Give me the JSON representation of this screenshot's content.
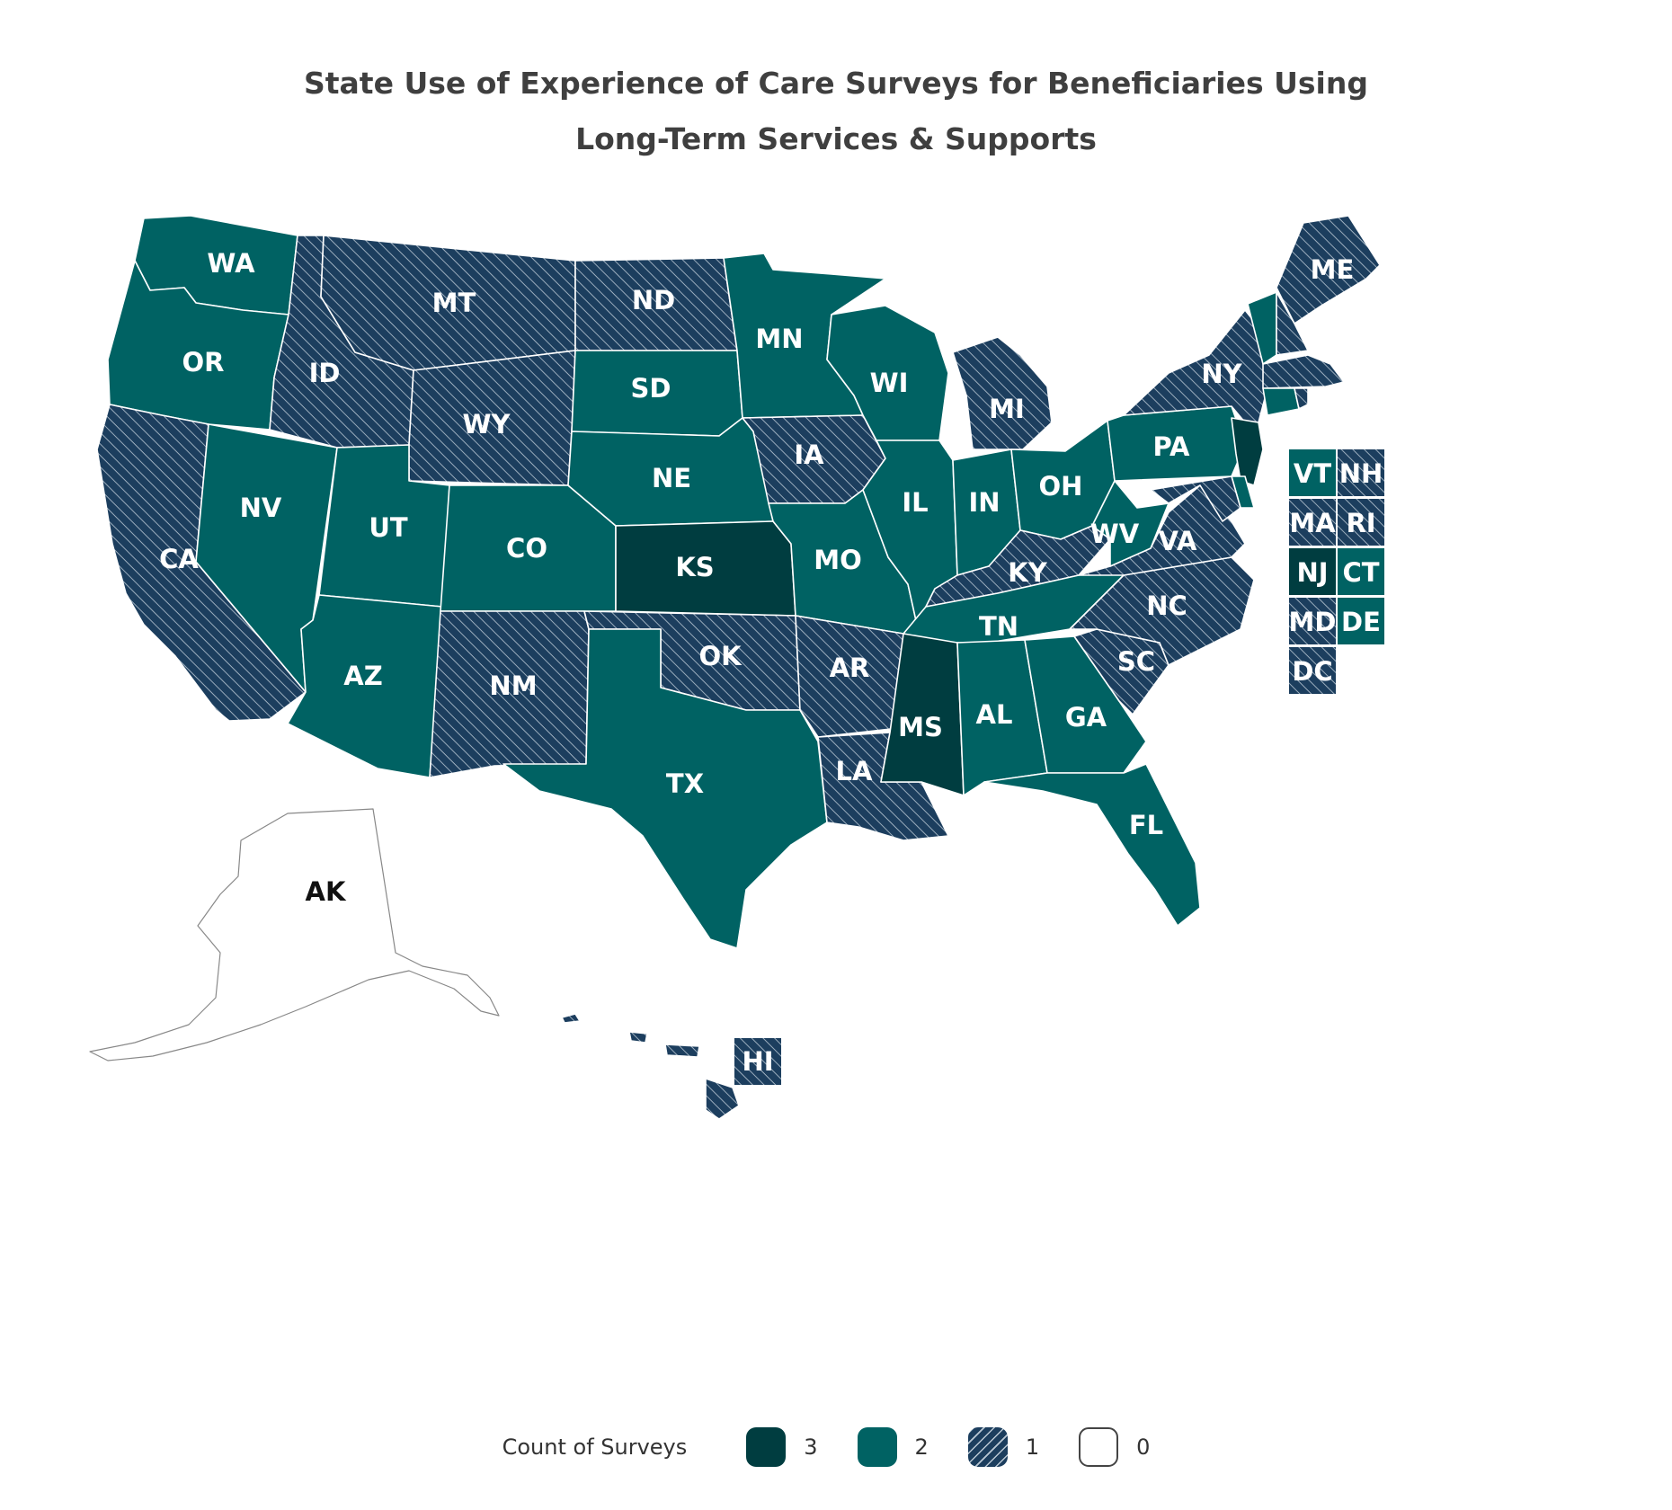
{
  "title": {
    "line1": "State Use of Experience of Care Surveys for Beneficiaries Using",
    "line2": "Long-Term Services & Supports"
  },
  "legend": {
    "title": "Count of Surveys",
    "items": [
      {
        "label": "3",
        "color": "#003d40",
        "pattern": false
      },
      {
        "label": "2",
        "color": "#006263",
        "pattern": false
      },
      {
        "label": "1",
        "color": "#1c3e5e",
        "pattern": true
      },
      {
        "label": "0",
        "color": "#ffffff",
        "pattern": false
      }
    ]
  },
  "colors": {
    "count_3": "#003d40",
    "count_2": "#006263",
    "count_1": "#1c3e5e",
    "count_0": "#ffffff"
  },
  "chart_data": {
    "type": "choropleth",
    "value_name": "Count of Surveys",
    "states": [
      {
        "abbr": "WA",
        "count": 2
      },
      {
        "abbr": "OR",
        "count": 2
      },
      {
        "abbr": "CA",
        "count": 1
      },
      {
        "abbr": "NV",
        "count": 2
      },
      {
        "abbr": "ID",
        "count": 1
      },
      {
        "abbr": "MT",
        "count": 1
      },
      {
        "abbr": "WY",
        "count": 1
      },
      {
        "abbr": "UT",
        "count": 2
      },
      {
        "abbr": "AZ",
        "count": 2
      },
      {
        "abbr": "CO",
        "count": 2
      },
      {
        "abbr": "NM",
        "count": 1
      },
      {
        "abbr": "ND",
        "count": 1
      },
      {
        "abbr": "SD",
        "count": 2
      },
      {
        "abbr": "NE",
        "count": 2
      },
      {
        "abbr": "KS",
        "count": 3
      },
      {
        "abbr": "OK",
        "count": 1
      },
      {
        "abbr": "TX",
        "count": 2
      },
      {
        "abbr": "MN",
        "count": 2
      },
      {
        "abbr": "IA",
        "count": 1
      },
      {
        "abbr": "MO",
        "count": 2
      },
      {
        "abbr": "AR",
        "count": 1
      },
      {
        "abbr": "LA",
        "count": 1
      },
      {
        "abbr": "WI",
        "count": 2
      },
      {
        "abbr": "IL",
        "count": 2
      },
      {
        "abbr": "MI",
        "count": 1
      },
      {
        "abbr": "IN",
        "count": 2
      },
      {
        "abbr": "OH",
        "count": 2
      },
      {
        "abbr": "KY",
        "count": 1
      },
      {
        "abbr": "TN",
        "count": 2
      },
      {
        "abbr": "MS",
        "count": 3
      },
      {
        "abbr": "AL",
        "count": 2
      },
      {
        "abbr": "GA",
        "count": 2
      },
      {
        "abbr": "FL",
        "count": 2
      },
      {
        "abbr": "SC",
        "count": 1
      },
      {
        "abbr": "NC",
        "count": 1
      },
      {
        "abbr": "VA",
        "count": 1
      },
      {
        "abbr": "WV",
        "count": 2
      },
      {
        "abbr": "PA",
        "count": 2
      },
      {
        "abbr": "NY",
        "count": 1
      },
      {
        "abbr": "ME",
        "count": 1
      },
      {
        "abbr": "AK",
        "count": 0
      },
      {
        "abbr": "HI",
        "count": 1
      },
      {
        "abbr": "VT",
        "count": 2
      },
      {
        "abbr": "NH",
        "count": 1
      },
      {
        "abbr": "MA",
        "count": 1
      },
      {
        "abbr": "RI",
        "count": 1
      },
      {
        "abbr": "NJ",
        "count": 3
      },
      {
        "abbr": "CT",
        "count": 2
      },
      {
        "abbr": "MD",
        "count": 1
      },
      {
        "abbr": "DE",
        "count": 2
      },
      {
        "abbr": "DC",
        "count": 1
      }
    ]
  }
}
